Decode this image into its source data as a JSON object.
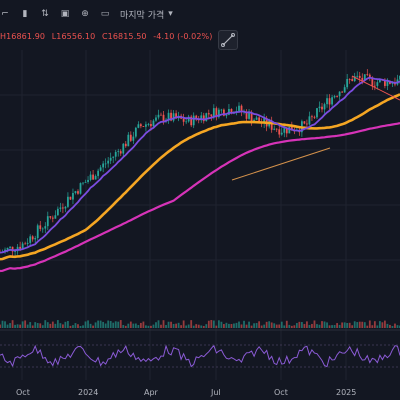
{
  "toolbar": {
    "items": [
      {
        "name": "timeframe-icon",
        "glyph": "⌐"
      },
      {
        "name": "candles-icon",
        "glyph": "▮"
      },
      {
        "name": "compare-icon",
        "glyph": "⇅"
      },
      {
        "name": "screenshot-icon",
        "glyph": "▣"
      },
      {
        "name": "add-icon",
        "glyph": "⊕"
      },
      {
        "name": "replay-icon",
        "glyph": "▭"
      }
    ],
    "price_type_label": "마지막 가격",
    "dropdown_icon": "chevron-down-icon"
  },
  "ohlc": {
    "high": "H16861.90",
    "low": "L16556.10",
    "close": "C16815.50",
    "change": "-4.10 (-0.02%)"
  },
  "chart_data": {
    "type": "candlestick",
    "x_ticks": [
      "Oct",
      "2024",
      "Apr",
      "Jul",
      "Oct",
      "2025"
    ],
    "price_series_approx": [
      {
        "t": 0,
        "v": 12900
      },
      {
        "t": 1,
        "v": 13100
      },
      {
        "t": 2,
        "v": 13600
      },
      {
        "t": 3,
        "v": 14200
      },
      {
        "t": 4,
        "v": 14700
      },
      {
        "t": 5,
        "v": 15200
      },
      {
        "t": 6,
        "v": 15800
      },
      {
        "t": 7,
        "v": 16000
      },
      {
        "t": 8,
        "v": 15900
      },
      {
        "t": 9,
        "v": 16100
      },
      {
        "t": 10,
        "v": 16200
      },
      {
        "t": 11,
        "v": 15900
      },
      {
        "t": 12,
        "v": 15700
      },
      {
        "t": 13,
        "v": 15800
      },
      {
        "t": 14,
        "v": 16400
      },
      {
        "t": 15,
        "v": 16900
      },
      {
        "t": 16,
        "v": 16800
      },
      {
        "t": 17,
        "v": 16815.5
      }
    ],
    "overlays": [
      {
        "color": "#7b4de0",
        "desc": "short moving average"
      },
      {
        "color": "#f5a623",
        "desc": "medium moving average"
      },
      {
        "color": "#d633b8",
        "desc": "long moving average"
      }
    ],
    "sub_pane": "oscillator",
    "colors": {
      "up": "#26a69a",
      "down": "#ef5350",
      "background": "#131722"
    }
  }
}
